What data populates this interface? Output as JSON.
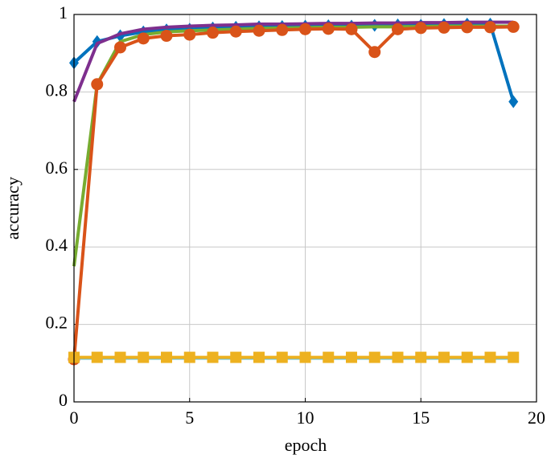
{
  "chart_data": {
    "type": "line",
    "xlabel": "epoch",
    "ylabel": "accuracy",
    "x": [
      0,
      1,
      2,
      3,
      4,
      5,
      6,
      7,
      8,
      9,
      10,
      11,
      12,
      13,
      14,
      15,
      16,
      17,
      18,
      19
    ],
    "xlim": [
      0,
      20
    ],
    "xticks": [
      0,
      5,
      10,
      15,
      20
    ],
    "ylim": [
      0,
      1
    ],
    "yticks": [
      0,
      0.2,
      0.4,
      0.6,
      0.8,
      1
    ],
    "grid": true,
    "series": [
      {
        "color": "#0072bd",
        "marker": "diamond",
        "values": [
          0.875,
          0.93,
          0.945,
          0.955,
          0.96,
          0.962,
          0.965,
          0.967,
          0.968,
          0.969,
          0.97,
          0.971,
          0.97,
          0.972,
          0.973,
          0.972,
          0.974,
          0.975,
          0.975,
          0.775
        ]
      },
      {
        "color": "#7e2f8e",
        "marker": "none",
        "values": [
          0.775,
          0.925,
          0.95,
          0.962,
          0.967,
          0.97,
          0.972,
          0.973,
          0.975,
          0.975,
          0.976,
          0.977,
          0.977,
          0.978,
          0.978,
          0.979,
          0.979,
          0.98,
          0.98,
          0.98
        ]
      },
      {
        "color": "#77ac30",
        "marker": "none",
        "values": [
          0.35,
          0.82,
          0.93,
          0.948,
          0.955,
          0.958,
          0.96,
          0.962,
          0.964,
          0.965,
          0.966,
          0.967,
          0.967,
          0.968,
          0.968,
          0.969,
          0.97,
          0.97,
          0.97,
          0.97
        ]
      },
      {
        "color": "#d95319",
        "marker": "circle",
        "values": [
          0.11,
          0.82,
          0.915,
          0.938,
          0.945,
          0.948,
          0.953,
          0.956,
          0.958,
          0.96,
          0.962,
          0.963,
          0.962,
          0.903,
          0.962,
          0.965,
          0.966,
          0.967,
          0.967,
          0.968
        ]
      },
      {
        "color": "#4dbeee",
        "marker": "none",
        "values": [
          0.113,
          0.113,
          0.113,
          0.113,
          0.113,
          0.113,
          0.113,
          0.113,
          0.113,
          0.113,
          0.113,
          0.113,
          0.113,
          0.113,
          0.113,
          0.113,
          0.113,
          0.113,
          0.113,
          0.113
        ]
      },
      {
        "color": "#edb120",
        "marker": "square",
        "values": [
          0.115,
          0.115,
          0.115,
          0.115,
          0.115,
          0.115,
          0.115,
          0.115,
          0.115,
          0.115,
          0.115,
          0.115,
          0.115,
          0.115,
          0.115,
          0.115,
          0.115,
          0.115,
          0.115,
          0.115
        ]
      }
    ]
  }
}
